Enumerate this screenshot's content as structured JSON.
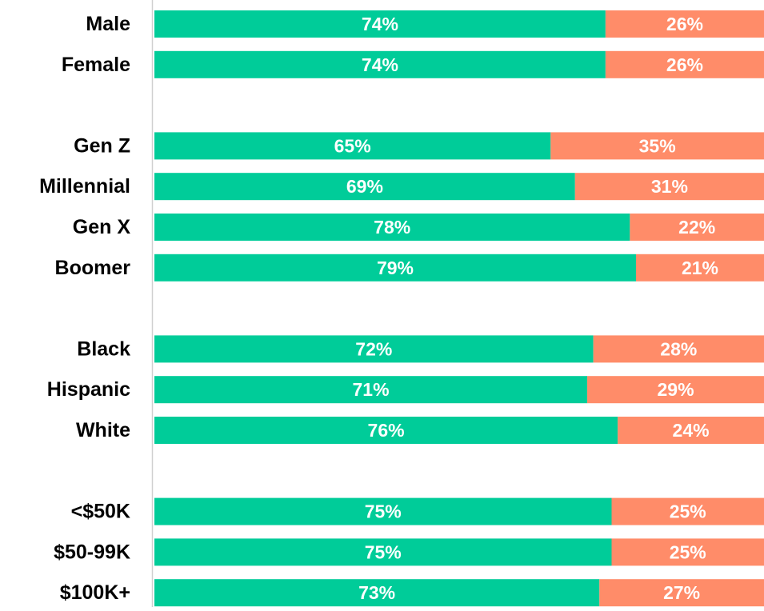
{
  "chart_data": {
    "type": "stacked_bar_horizontal",
    "categories": [
      "Male",
      "Female",
      null,
      "Gen Z",
      "Millennial",
      "Gen X",
      "Boomer",
      null,
      "Black",
      "Hispanic",
      "White",
      null,
      "<$50K",
      "$50-99K",
      "$100K+"
    ],
    "series": [
      {
        "color": "#00cc99",
        "values": [
          74,
          74,
          null,
          65,
          69,
          78,
          79,
          null,
          72,
          71,
          76,
          null,
          75,
          75,
          73
        ],
        "value_labels": [
          "74%",
          "74%",
          null,
          "65%",
          "69%",
          "78%",
          "79%",
          null,
          "72%",
          "71%",
          "76%",
          null,
          "75%",
          "75%",
          "73%"
        ]
      },
      {
        "color": "#ff8c69",
        "values": [
          26,
          26,
          null,
          35,
          31,
          22,
          21,
          null,
          28,
          29,
          24,
          null,
          25,
          25,
          27
        ],
        "value_labels": [
          "26%",
          "26%",
          null,
          "35%",
          "31%",
          "22%",
          "21%",
          null,
          "28%",
          "29%",
          "24%",
          null,
          "25%",
          "25%",
          "27%"
        ]
      }
    ]
  }
}
